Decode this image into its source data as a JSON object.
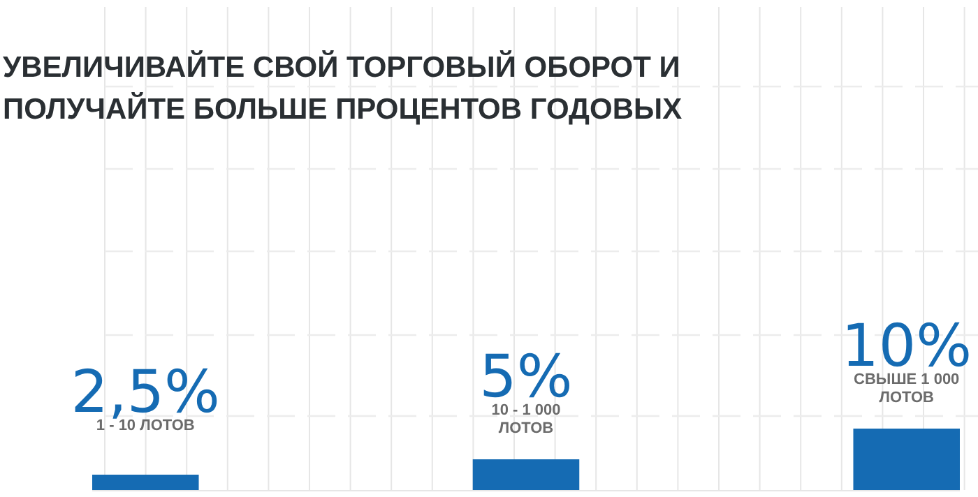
{
  "chart_data": {
    "type": "bar",
    "title": "УВЕЛИЧИВАЙТЕ СВОЙ ТОРГОВЫЙ ОБОРОТ И ПОЛУЧАЙТЕ БОЛЬШЕ ПРОЦЕНТОВ ГОДОВЫХ",
    "categories": [
      "1 - 10 ЛОТОВ",
      "10 - 1 000 ЛОТОВ",
      "СВЫШЕ 1 000 ЛОТОВ"
    ],
    "values": [
      2.5,
      5,
      10
    ],
    "value_labels": [
      "2,5%",
      "5%",
      "10%"
    ],
    "color": "#156bb3",
    "grid": true
  }
}
